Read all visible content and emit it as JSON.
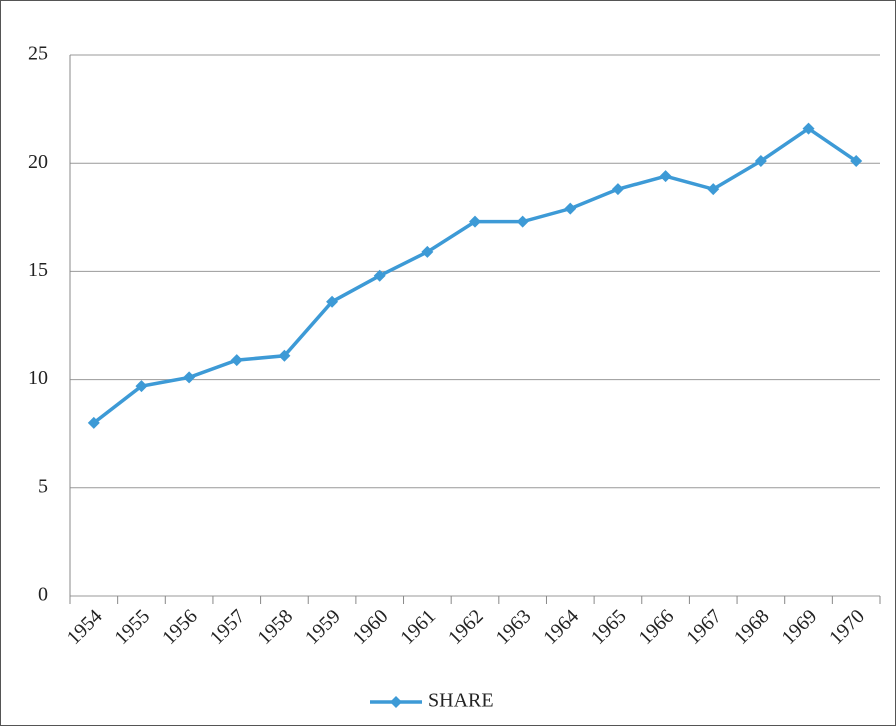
{
  "chart_data": {
    "type": "line",
    "categories": [
      "1954",
      "1955",
      "1956",
      "1957",
      "1958",
      "1959",
      "1960",
      "1961",
      "1962",
      "1963",
      "1964",
      "1965",
      "1966",
      "1967",
      "1968",
      "1969",
      "1970"
    ],
    "series": [
      {
        "name": "SHARE",
        "color": "#3d9ad6",
        "values": [
          8.0,
          9.7,
          10.1,
          10.9,
          11.1,
          13.6,
          14.8,
          15.9,
          17.3,
          17.3,
          17.9,
          18.8,
          19.4,
          18.8,
          20.1,
          21.6,
          20.1
        ]
      }
    ],
    "ylim": [
      0,
      25
    ],
    "yticks": [
      0,
      5,
      10,
      15,
      20,
      25
    ],
    "grid": true,
    "legend": "bottom"
  }
}
